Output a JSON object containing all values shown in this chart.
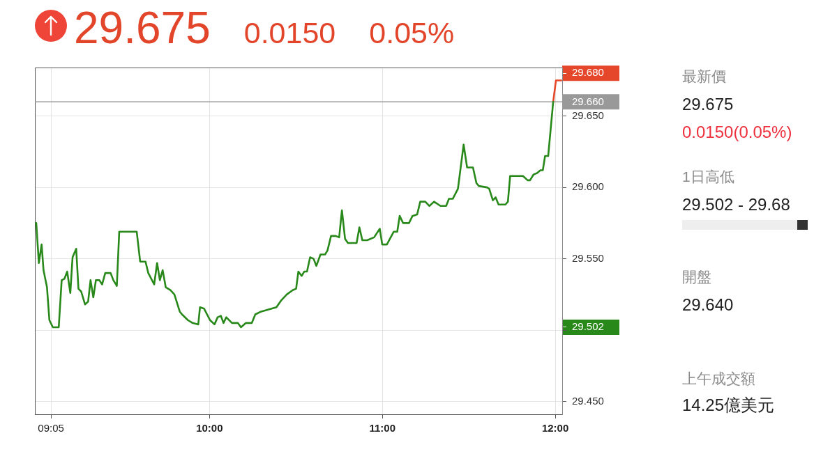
{
  "chart_data": [
    {
      "type": "line",
      "title": "29.675",
      "annotations": [
        "0.0150",
        "0.05%"
      ],
      "series": [
        {
          "color": "#28891a",
          "x": [
            8.99,
            8.998,
            9.013,
            9.029,
            9.04,
            9.06,
            9.074,
            9.094,
            9.128,
            9.145,
            9.161,
            9.177,
            9.195,
            9.208,
            9.229,
            9.242,
            9.258,
            9.28,
            9.298,
            9.312,
            9.328,
            9.343,
            9.363,
            9.379,
            9.397,
            9.428,
            9.444,
            9.464,
            9.478,
            9.579,
            9.599,
            9.63,
            9.646,
            9.68,
            9.697,
            9.713,
            9.729,
            9.747,
            9.774,
            9.797,
            9.828,
            9.841,
            9.875,
            9.902,
            9.935,
            9.945,
            9.969,
            10.003,
            10.029,
            10.047,
            10.066,
            10.081,
            10.097,
            10.13,
            10.164,
            10.182,
            10.211,
            10.245,
            10.265,
            10.299,
            10.387,
            10.416,
            10.447,
            10.481,
            10.501,
            10.514,
            10.533,
            10.548,
            10.564,
            10.582,
            10.602,
            10.618,
            10.642,
            10.669,
            10.683,
            10.703,
            10.73,
            10.75,
            10.766,
            10.784,
            10.801,
            10.851,
            10.867,
            10.884,
            10.912,
            10.952,
            10.985,
            10.999,
            11.026,
            11.066,
            11.086,
            11.1,
            11.12,
            11.154,
            11.174,
            11.201,
            11.219,
            11.248,
            11.272,
            11.299,
            11.336,
            11.369,
            11.385,
            11.407,
            11.437,
            11.47,
            11.49,
            11.524,
            11.544,
            11.558,
            11.605,
            11.618,
            11.639,
            11.655,
            11.672,
            11.712,
            11.726,
            11.739,
            11.813,
            11.84,
            11.854,
            11.874,
            11.894,
            11.914,
            11.928,
            11.941,
            11.959,
            11.988
          ],
          "values": [
            29.575,
            29.575,
            29.547,
            29.56,
            29.542,
            29.53,
            29.507,
            29.502,
            29.502,
            29.535,
            29.536,
            29.541,
            29.526,
            29.551,
            29.557,
            29.529,
            29.527,
            29.518,
            29.52,
            29.535,
            29.523,
            29.535,
            29.535,
            29.532,
            29.54,
            29.54,
            29.535,
            29.531,
            29.569,
            29.569,
            29.548,
            29.548,
            29.54,
            29.532,
            29.547,
            29.535,
            29.542,
            29.53,
            29.528,
            29.525,
            29.513,
            29.511,
            29.507,
            29.505,
            29.504,
            29.516,
            29.515,
            29.507,
            29.504,
            29.509,
            29.51,
            29.505,
            29.509,
            29.505,
            29.505,
            29.502,
            29.505,
            29.505,
            29.511,
            29.513,
            29.516,
            29.521,
            29.525,
            29.528,
            29.529,
            29.541,
            29.538,
            29.541,
            29.541,
            29.551,
            29.55,
            29.545,
            29.553,
            29.553,
            29.556,
            29.566,
            29.566,
            29.565,
            29.584,
            29.564,
            29.561,
            29.561,
            29.572,
            29.563,
            29.563,
            29.565,
            29.571,
            29.56,
            29.56,
            29.569,
            29.569,
            29.58,
            29.575,
            29.575,
            29.58,
            29.581,
            29.59,
            29.59,
            29.587,
            29.59,
            29.587,
            29.587,
            29.592,
            29.592,
            29.599,
            29.63,
            29.614,
            29.614,
            29.603,
            29.601,
            29.6,
            29.599,
            29.591,
            29.593,
            29.588,
            29.588,
            29.59,
            29.608,
            29.608,
            29.605,
            29.605,
            29.609,
            29.61,
            29.612,
            29.612,
            29.622,
            29.622,
            29.66
          ]
        },
        {
          "color": "#e5472a",
          "x": [
            11.988,
            12.004,
            12.035
          ],
          "values": [
            29.66,
            29.675,
            29.675
          ]
        }
      ],
      "xlim": [
        8.99,
        12.04
      ],
      "xticks": [
        {
          "value": 9.0833,
          "label": "09:05"
        },
        {
          "value": 10,
          "label": "10:00"
        },
        {
          "value": 11,
          "label": "11:00"
        },
        {
          "value": 12,
          "label": "12:00"
        }
      ],
      "ylim": [
        29.441,
        29.684
      ],
      "yticks": [
        {
          "value": 29.45,
          "label": "29.450"
        },
        {
          "value": 29.5,
          "label": null
        },
        {
          "value": 29.502,
          "label": "29.502"
        },
        {
          "value": 29.55,
          "label": "29.550"
        },
        {
          "value": 29.6,
          "label": "29.600"
        },
        {
          "value": 29.65,
          "label": "29.650"
        },
        {
          "value": 29.68,
          "label": "29.680"
        }
      ],
      "grid": true,
      "ref_lines": [
        {
          "axis": "y",
          "value": 29.66,
          "label": "29.660",
          "color": "#999999"
        }
      ]
    },
    {
      "type": "other",
      "annotations": [
        "最新價",
        "29.675",
        "0.0150(0.05%)",
        "1日高低",
        "29.502 - 29.68",
        "開盤",
        "29.640",
        "上午成交額",
        "14.25億美元"
      ]
    }
  ]
}
